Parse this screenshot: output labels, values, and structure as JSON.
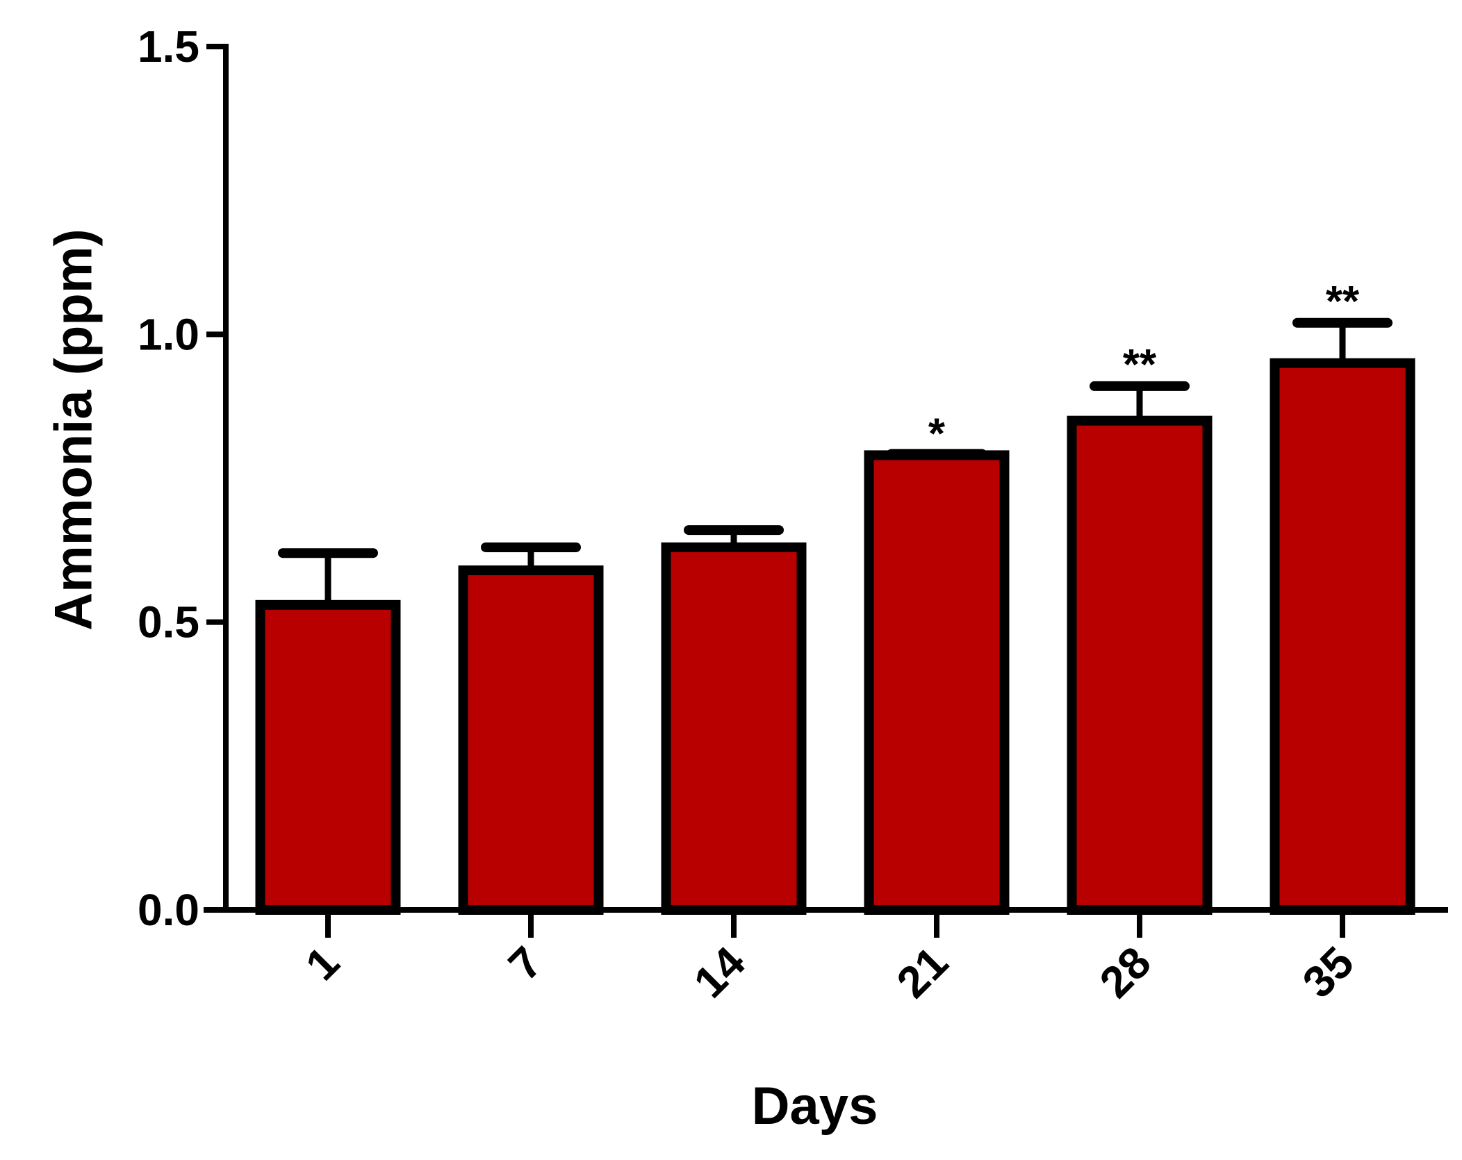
{
  "chart_data": {
    "type": "bar",
    "xlabel": "Days",
    "ylabel": "Ammonia (ppm)",
    "categories": [
      "1",
      "7",
      "14",
      "21",
      "28",
      "35"
    ],
    "values": [
      0.53,
      0.59,
      0.63,
      0.79,
      0.85,
      0.95
    ],
    "errors": [
      0.09,
      0.04,
      0.03,
      0.0,
      0.06,
      0.07
    ],
    "significance": [
      "",
      "",
      "",
      "*",
      "**",
      "**"
    ],
    "ylim": [
      0,
      1.5
    ],
    "yticks": [
      "0.0",
      "0.5",
      "1.0",
      "1.5"
    ],
    "ytick_values": [
      0,
      0.5,
      1.0,
      1.5
    ],
    "grid": false,
    "legend": "none",
    "colors": {
      "bar": "#b90000",
      "outline": "#000000"
    }
  }
}
